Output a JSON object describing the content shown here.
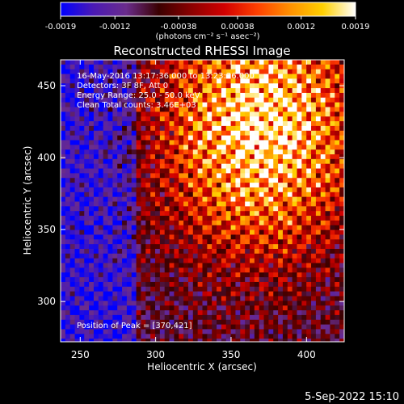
{
  "chart_data": {
    "type": "heatmap",
    "title": "Reconstructed RHESSI Image",
    "xlabel": "Heliocentric X (arcsec)",
    "ylabel": "Heliocentric Y (arcsec)",
    "xlim": [
      237,
      425
    ],
    "ylim": [
      272,
      468
    ],
    "x_ticks": [
      250,
      300,
      350,
      400
    ],
    "y_ticks": [
      300,
      350,
      400,
      450
    ],
    "colorbar": {
      "range": [
        -0.0019,
        0.0019
      ],
      "ticks": [
        "-0.0019",
        "-0.0012",
        "-0.00038",
        "0.00038",
        "0.0012",
        "0.0019"
      ],
      "label": "(photons cm⁻² s⁻¹ asec⁻²)",
      "colors": [
        "#0000ff",
        "#4b1ab4",
        "#6a2c8c",
        "#3a0000",
        "#8c0000",
        "#d20000",
        "#ff4000",
        "#ff9000",
        "#ffd000",
        "#ffffff"
      ]
    },
    "annotations": [
      "16-May-2016 13:17:36.000 to 13:23:36.000",
      "Detectors: 3F 8F, Att 0",
      "Energy Range: 25.0 - 50.0 keV",
      "Clean     Total counts: 3.46E+03"
    ],
    "peak_label": "Position of Peak = [370,421]",
    "peak": [
      370,
      421
    ],
    "timestamp": "5-Sep-2022 15:10"
  }
}
